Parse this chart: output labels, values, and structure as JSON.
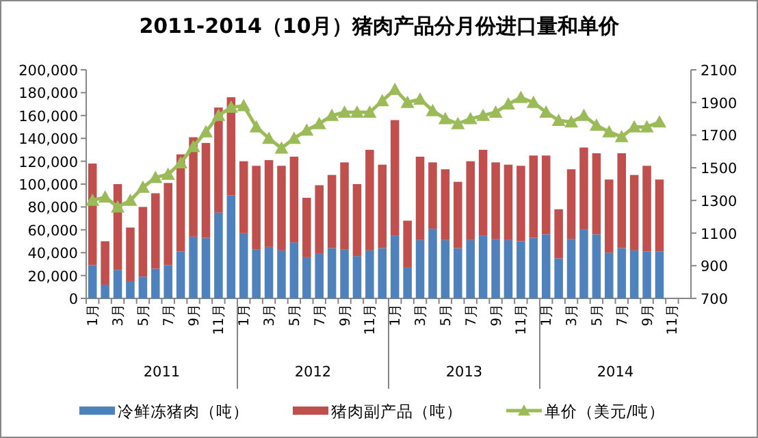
{
  "chart_data": {
    "type": "bar",
    "title": "2011-2014（10月）猪肉产品分月份进口量和单价",
    "stacked": true,
    "categories": [
      "1月",
      null,
      "3月",
      null,
      "5月",
      null,
      "7月",
      null,
      "9月",
      null,
      "11月",
      null,
      "1月",
      null,
      "3月",
      null,
      "5月",
      null,
      "7月",
      null,
      "9月",
      null,
      "11月",
      null,
      "1月",
      null,
      "3月",
      null,
      "5月",
      null,
      "7月",
      null,
      "9月",
      null,
      "11月",
      null,
      "1月",
      null,
      "3月",
      null,
      "5月",
      null,
      "7月",
      null,
      "9月",
      null,
      "11月",
      null
    ],
    "annotations": [
      "2011",
      "2012",
      "2013",
      "2014"
    ],
    "series": [
      {
        "name": "冷鲜冻猪肉（吨）",
        "color": "#4f81bd",
        "values": [
          29000,
          12000,
          25000,
          15000,
          19000,
          26000,
          29000,
          41000,
          54000,
          53000,
          75000,
          90000,
          57000,
          43000,
          45000,
          42000,
          49000,
          36000,
          39000,
          44000,
          43000,
          37000,
          42000,
          44000,
          55000,
          27000,
          51000,
          61000,
          51000,
          44000,
          51000,
          55000,
          52000,
          51000,
          50000,
          53000,
          56000,
          35000,
          52000,
          60000,
          56000,
          40000,
          44000,
          42000,
          41000,
          41000,
          null,
          null
        ]
      },
      {
        "name": "猪肉副产品（吨）",
        "color": "#c0504d",
        "values": [
          89000,
          38000,
          75000,
          47000,
          61000,
          66000,
          72000,
          85000,
          87000,
          83000,
          92000,
          86000,
          63000,
          73000,
          76000,
          74000,
          75000,
          52000,
          60000,
          64000,
          76000,
          63000,
          88000,
          73000,
          101000,
          41000,
          73000,
          58000,
          62000,
          58000,
          69000,
          75000,
          67000,
          66000,
          66000,
          72000,
          69000,
          43000,
          61000,
          72000,
          71000,
          64000,
          83000,
          66000,
          75000,
          63000,
          null,
          null
        ]
      },
      {
        "name": "单价（美元/吨）",
        "type": "line",
        "axis": "y2",
        "marker": "triangle",
        "color": "#9bbb59",
        "values": [
          1300,
          1320,
          1260,
          1300,
          1380,
          1440,
          1460,
          1530,
          1630,
          1720,
          1820,
          1870,
          1880,
          1750,
          1680,
          1620,
          1680,
          1730,
          1770,
          1820,
          1840,
          1840,
          1840,
          1910,
          1980,
          1900,
          1920,
          1850,
          1800,
          1770,
          1800,
          1820,
          1840,
          1890,
          1930,
          1900,
          1840,
          1790,
          1780,
          1820,
          1760,
          1720,
          1690,
          1750,
          1750,
          1780,
          null,
          null
        ]
      }
    ],
    "ylim": [
      0,
      200000
    ],
    "yticks": [
      0,
      {
        "value": 20000,
        "label": "20,000"
      },
      {
        "value": 40000,
        "label": "40,000"
      },
      {
        "value": 60000,
        "label": "60,000"
      },
      {
        "value": 80000,
        "label": "80,000"
      },
      {
        "value": 100000,
        "label": "100,000"
      },
      {
        "value": 120000,
        "label": "120,000"
      },
      {
        "value": 140000,
        "label": "140,000"
      },
      {
        "value": 160000,
        "label": "160,000"
      },
      {
        "value": 180000,
        "label": "180,000"
      },
      {
        "value": 200000,
        "label": "200,000"
      }
    ],
    "y2lim": [
      700,
      2100
    ],
    "y2ticks": [
      700,
      900,
      1100,
      1300,
      1500,
      1700,
      1900,
      2100
    ],
    "legend": "bottom"
  }
}
